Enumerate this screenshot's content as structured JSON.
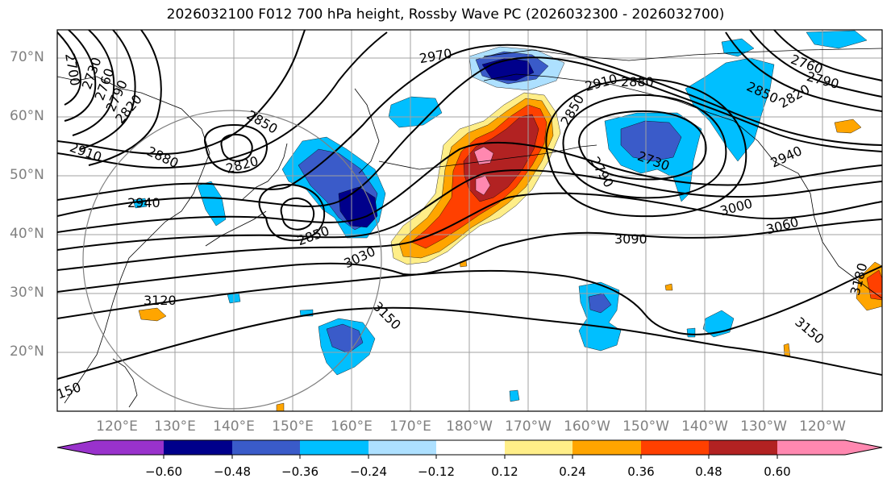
{
  "title": "2026032100 F012 700 hPa height, Rossby Wave PC (2026032300 - 2026032700)",
  "colors": {
    "neg_060": "#9932CC",
    "neg_048": "#00008B",
    "neg_036": "#3A5BC9",
    "neg_024": "#00BFFF",
    "neg_012": "#ADE0FF",
    "neutral": "#FFFFFF",
    "pos_012": "#FFEE88",
    "pos_024": "#FFA500",
    "pos_036": "#FF4000",
    "pos_048": "#B22222",
    "pos_060": "#FF88B0"
  },
  "chart_data": {
    "type": "map",
    "title": "2026032100 F012 700 hPa height, Rossby Wave PC (2026032300 - 2026032700)",
    "lat_ticks": [
      "70°N",
      "60°N",
      "50°N",
      "40°N",
      "30°N",
      "20°N"
    ],
    "lon_ticks": [
      "120°E",
      "130°E",
      "140°E",
      "150°E",
      "160°E",
      "170°E",
      "180°W",
      "170°W",
      "160°W",
      "150°W",
      "140°W",
      "130°W",
      "120°W"
    ],
    "colorbar": {
      "levels": [
        "−0.60",
        "−0.48",
        "−0.36",
        "−0.24",
        "−0.12",
        "0.12",
        "0.24",
        "0.36",
        "0.48",
        "0.60"
      ],
      "colors": [
        "#9932CC",
        "#00008B",
        "#3A5BC9",
        "#00BFFF",
        "#ADE0FF",
        "#FFFFFF",
        "#FFEE88",
        "#FFA500",
        "#FF4000",
        "#B22222",
        "#FF88B0"
      ],
      "extend": "both"
    },
    "contour_labels": [
      "2700",
      "2730",
      "2760",
      "2790",
      "2820",
      "2850",
      "2910",
      "2880",
      "2940",
      "2820",
      "2850",
      "3030",
      "2970",
      "2910",
      "2880",
      "2850",
      "2730",
      "2790",
      "2940",
      "2850",
      "2820",
      "2760",
      "2790",
      "3000",
      "3060",
      "3090",
      "3120",
      "3150",
      "3150",
      "3180",
      "150"
    ]
  }
}
